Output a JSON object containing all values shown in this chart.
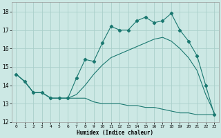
{
  "xlabel": "Humidex (Indice chaleur)",
  "bg_color": "#cce8e4",
  "grid_color": "#aacfca",
  "line_color": "#1a7870",
  "xlim": [
    -0.5,
    23.5
  ],
  "ylim": [
    12,
    18.5
  ],
  "xticks": [
    0,
    1,
    2,
    3,
    4,
    5,
    6,
    7,
    8,
    9,
    10,
    11,
    12,
    13,
    14,
    15,
    16,
    17,
    18,
    19,
    20,
    21,
    22,
    23
  ],
  "yticks": [
    12,
    13,
    14,
    15,
    16,
    17,
    18
  ],
  "series1_x": [
    0,
    1,
    2,
    3,
    4,
    5,
    6,
    7,
    8,
    9,
    10,
    11,
    12,
    13,
    14,
    15,
    16,
    17,
    18,
    19,
    20,
    21,
    22,
    23
  ],
  "series1_y": [
    14.6,
    14.2,
    13.6,
    13.6,
    13.3,
    13.3,
    13.3,
    14.4,
    15.4,
    15.3,
    16.3,
    17.2,
    17.0,
    17.0,
    17.5,
    17.7,
    17.4,
    17.5,
    17.9,
    17.0,
    16.4,
    15.6,
    14.0,
    12.4
  ],
  "series2_x": [
    0,
    1,
    2,
    3,
    4,
    5,
    6,
    7,
    8,
    9,
    10,
    11,
    12,
    13,
    14,
    15,
    16,
    17,
    18,
    19,
    20,
    21,
    22,
    23
  ],
  "series2_y": [
    14.6,
    14.2,
    13.6,
    13.6,
    13.3,
    13.3,
    13.3,
    13.3,
    13.3,
    13.1,
    13.0,
    13.0,
    13.0,
    12.9,
    12.9,
    12.8,
    12.8,
    12.7,
    12.6,
    12.5,
    12.5,
    12.4,
    12.4,
    12.4
  ],
  "series3_x": [
    0,
    1,
    2,
    3,
    4,
    5,
    6,
    7,
    8,
    9,
    10,
    11,
    12,
    13,
    14,
    15,
    16,
    17,
    18,
    19,
    20,
    21,
    22,
    23
  ],
  "series3_y": [
    14.6,
    14.2,
    13.6,
    13.6,
    13.3,
    13.3,
    13.3,
    13.5,
    14.0,
    14.6,
    15.1,
    15.5,
    15.7,
    15.9,
    16.1,
    16.3,
    16.5,
    16.6,
    16.4,
    16.0,
    15.5,
    14.8,
    13.5,
    12.5
  ]
}
